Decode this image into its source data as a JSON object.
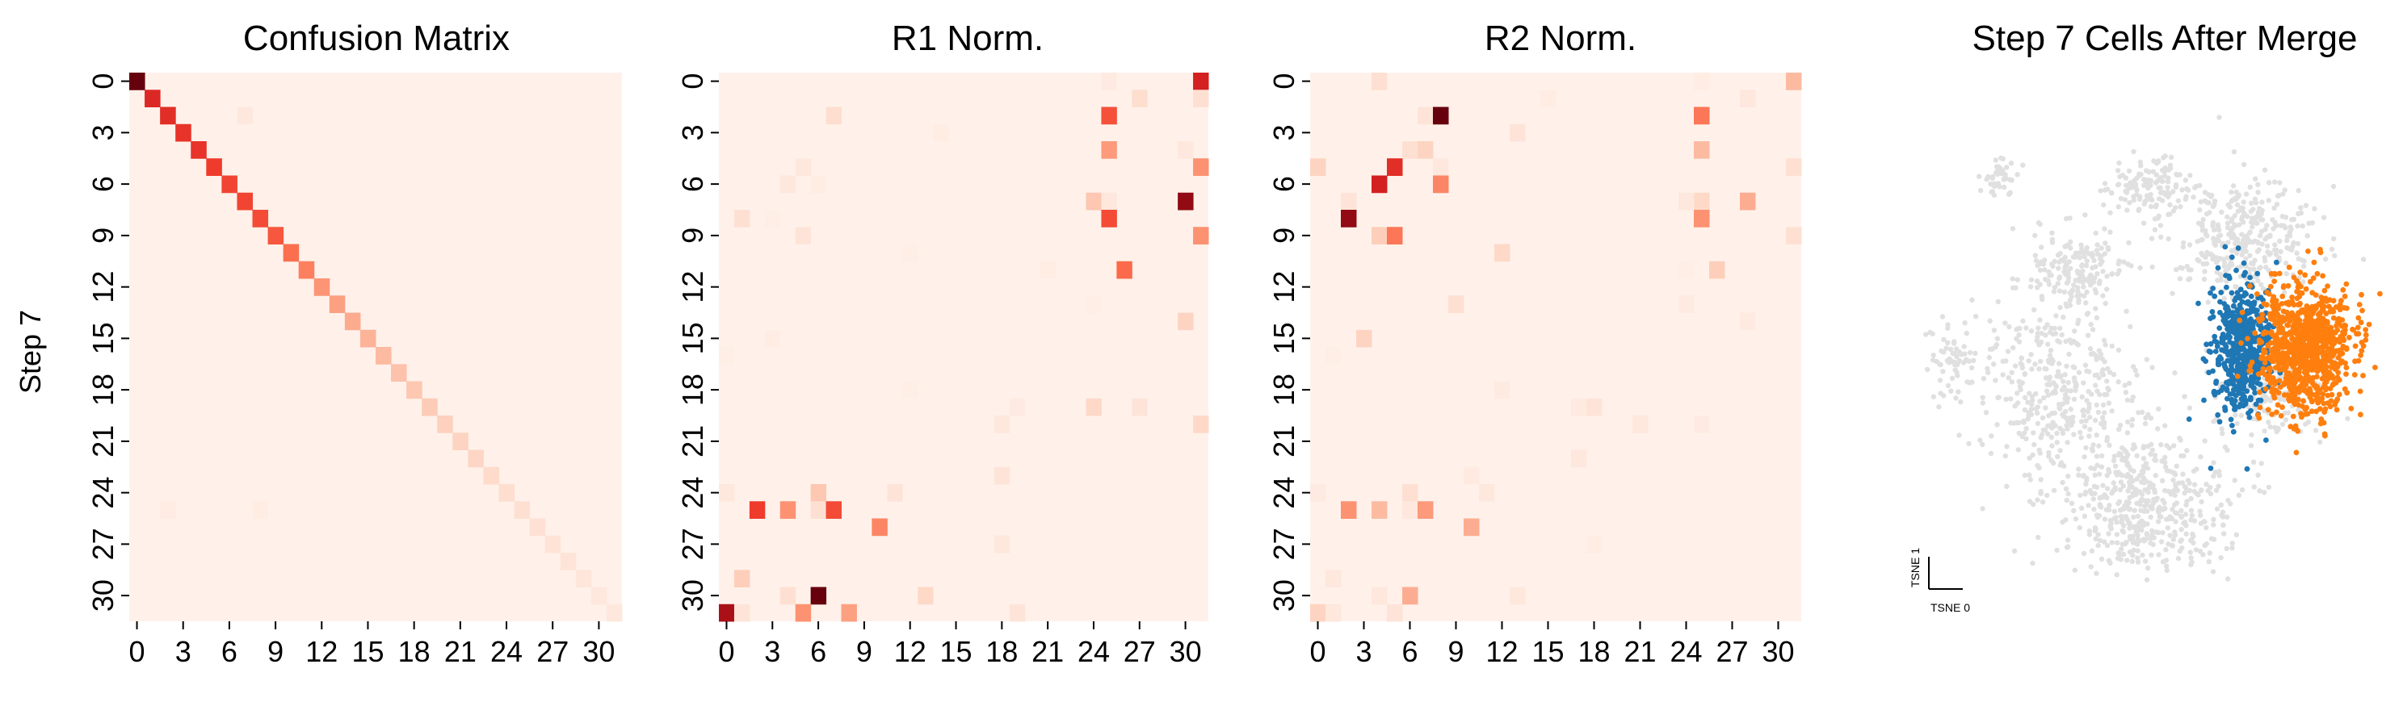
{
  "chart_data": [
    {
      "type": "heatmap",
      "title": "Confusion Matrix",
      "ylabel": "Step 7",
      "xlabel": "",
      "colormap": "Reds",
      "size": 32,
      "tick_labels": [
        "0",
        "3",
        "6",
        "9",
        "12",
        "15",
        "18",
        "21",
        "24",
        "27",
        "30"
      ],
      "tick_values": [
        0,
        3,
        6,
        9,
        12,
        15,
        18,
        21,
        24,
        27,
        30
      ],
      "background_level": 0.03,
      "cells": [
        [
          0,
          0,
          1.0
        ],
        [
          1,
          1,
          0.82
        ],
        [
          2,
          2,
          0.8
        ],
        [
          3,
          3,
          0.78
        ],
        [
          4,
          4,
          0.78
        ],
        [
          5,
          5,
          0.75
        ],
        [
          6,
          6,
          0.72
        ],
        [
          7,
          7,
          0.72
        ],
        [
          8,
          8,
          0.7
        ],
        [
          9,
          9,
          0.66
        ],
        [
          10,
          10,
          0.58
        ],
        [
          11,
          11,
          0.52
        ],
        [
          12,
          12,
          0.44
        ],
        [
          13,
          13,
          0.4
        ],
        [
          14,
          14,
          0.36
        ],
        [
          15,
          15,
          0.33
        ],
        [
          16,
          16,
          0.3
        ],
        [
          17,
          17,
          0.27
        ],
        [
          18,
          18,
          0.25
        ],
        [
          19,
          19,
          0.23
        ],
        [
          20,
          20,
          0.21
        ],
        [
          21,
          21,
          0.2
        ],
        [
          22,
          22,
          0.19
        ],
        [
          23,
          23,
          0.17
        ],
        [
          24,
          24,
          0.16
        ],
        [
          25,
          25,
          0.15
        ],
        [
          26,
          26,
          0.14
        ],
        [
          27,
          27,
          0.13
        ],
        [
          28,
          28,
          0.12
        ],
        [
          29,
          29,
          0.11
        ],
        [
          30,
          30,
          0.1
        ],
        [
          31,
          31,
          0.09
        ],
        [
          2,
          7,
          0.09
        ],
        [
          25,
          2,
          0.07
        ],
        [
          25,
          8,
          0.06
        ]
      ]
    },
    {
      "type": "heatmap",
      "title": "R1 Norm.",
      "ylabel": "",
      "xlabel": "",
      "colormap": "Reds",
      "size": 32,
      "tick_labels": [
        "0",
        "3",
        "6",
        "9",
        "12",
        "15",
        "18",
        "21",
        "24",
        "27",
        "30"
      ],
      "tick_values": [
        0,
        3,
        6,
        9,
        12,
        15,
        18,
        21,
        24,
        27,
        30
      ],
      "background_level": 0.03,
      "cells": [
        [
          0,
          31,
          0.85
        ],
        [
          0,
          25,
          0.08
        ],
        [
          1,
          31,
          0.15
        ],
        [
          1,
          27,
          0.16
        ],
        [
          2,
          7,
          0.16
        ],
        [
          2,
          25,
          0.68
        ],
        [
          3,
          14,
          0.06
        ],
        [
          4,
          25,
          0.42
        ],
        [
          4,
          30,
          0.1
        ],
        [
          5,
          5,
          0.1
        ],
        [
          5,
          31,
          0.45
        ],
        [
          6,
          4,
          0.1
        ],
        [
          6,
          6,
          0.06
        ],
        [
          7,
          24,
          0.25
        ],
        [
          7,
          25,
          0.1
        ],
        [
          7,
          30,
          0.95
        ],
        [
          8,
          1,
          0.15
        ],
        [
          8,
          25,
          0.7
        ],
        [
          8,
          3,
          0.05
        ],
        [
          9,
          5,
          0.12
        ],
        [
          9,
          31,
          0.45
        ],
        [
          10,
          12,
          0.05
        ],
        [
          11,
          21,
          0.06
        ],
        [
          11,
          26,
          0.6
        ],
        [
          13,
          24,
          0.05
        ],
        [
          14,
          30,
          0.2
        ],
        [
          15,
          3,
          0.06
        ],
        [
          16,
          0,
          0.05
        ],
        [
          18,
          12,
          0.05
        ],
        [
          19,
          19,
          0.08
        ],
        [
          19,
          24,
          0.18
        ],
        [
          19,
          27,
          0.12
        ],
        [
          20,
          18,
          0.1
        ],
        [
          20,
          31,
          0.18
        ],
        [
          23,
          18,
          0.12
        ],
        [
          24,
          0,
          0.1
        ],
        [
          24,
          6,
          0.25
        ],
        [
          24,
          11,
          0.12
        ],
        [
          25,
          2,
          0.75
        ],
        [
          25,
          4,
          0.45
        ],
        [
          25,
          6,
          0.15
        ],
        [
          25,
          7,
          0.7
        ],
        [
          26,
          10,
          0.5
        ],
        [
          27,
          18,
          0.1
        ],
        [
          29,
          1,
          0.22
        ],
        [
          30,
          4,
          0.15
        ],
        [
          30,
          6,
          1.0
        ],
        [
          30,
          13,
          0.18
        ],
        [
          31,
          0,
          0.92
        ],
        [
          31,
          1,
          0.12
        ],
        [
          31,
          5,
          0.45
        ],
        [
          31,
          8,
          0.4
        ],
        [
          31,
          19,
          0.12
        ]
      ]
    },
    {
      "type": "heatmap",
      "title": "R2 Norm.",
      "ylabel": "",
      "xlabel": "",
      "colormap": "Reds",
      "size": 32,
      "tick_labels": [
        "0",
        "3",
        "6",
        "9",
        "12",
        "15",
        "18",
        "21",
        "24",
        "27",
        "30"
      ],
      "tick_values": [
        0,
        3,
        6,
        9,
        12,
        15,
        18,
        21,
        24,
        27,
        30
      ],
      "background_level": 0.03,
      "cells": [
        [
          0,
          4,
          0.15
        ],
        [
          0,
          31,
          0.3
        ],
        [
          0,
          25,
          0.06
        ],
        [
          1,
          15,
          0.06
        ],
        [
          1,
          28,
          0.1
        ],
        [
          2,
          7,
          0.12
        ],
        [
          2,
          8,
          1.0
        ],
        [
          2,
          25,
          0.55
        ],
        [
          3,
          13,
          0.12
        ],
        [
          4,
          6,
          0.15
        ],
        [
          4,
          7,
          0.2
        ],
        [
          4,
          25,
          0.3
        ],
        [
          5,
          0,
          0.2
        ],
        [
          5,
          5,
          0.8
        ],
        [
          5,
          8,
          0.1
        ],
        [
          5,
          31,
          0.15
        ],
        [
          6,
          4,
          0.85
        ],
        [
          6,
          8,
          0.5
        ],
        [
          7,
          2,
          0.12
        ],
        [
          7,
          25,
          0.18
        ],
        [
          7,
          24,
          0.1
        ],
        [
          7,
          28,
          0.35
        ],
        [
          8,
          2,
          0.95
        ],
        [
          8,
          25,
          0.45
        ],
        [
          9,
          4,
          0.22
        ],
        [
          9,
          5,
          0.55
        ],
        [
          9,
          31,
          0.15
        ],
        [
          10,
          12,
          0.18
        ],
        [
          11,
          24,
          0.05
        ],
        [
          11,
          26,
          0.22
        ],
        [
          13,
          9,
          0.15
        ],
        [
          13,
          24,
          0.08
        ],
        [
          14,
          28,
          0.08
        ],
        [
          15,
          3,
          0.2
        ],
        [
          16,
          1,
          0.05
        ],
        [
          18,
          12,
          0.08
        ],
        [
          19,
          17,
          0.08
        ],
        [
          19,
          18,
          0.12
        ],
        [
          20,
          25,
          0.08
        ],
        [
          20,
          21,
          0.1
        ],
        [
          22,
          17,
          0.1
        ],
        [
          23,
          10,
          0.08
        ],
        [
          24,
          0,
          0.08
        ],
        [
          24,
          6,
          0.15
        ],
        [
          24,
          11,
          0.1
        ],
        [
          25,
          2,
          0.45
        ],
        [
          25,
          4,
          0.3
        ],
        [
          25,
          6,
          0.1
        ],
        [
          25,
          7,
          0.42
        ],
        [
          26,
          10,
          0.35
        ],
        [
          27,
          18,
          0.06
        ],
        [
          29,
          1,
          0.1
        ],
        [
          30,
          4,
          0.1
        ],
        [
          30,
          6,
          0.35
        ],
        [
          30,
          13,
          0.1
        ],
        [
          31,
          0,
          0.2
        ],
        [
          31,
          1,
          0.1
        ],
        [
          31,
          5,
          0.12
        ]
      ]
    },
    {
      "type": "scatter",
      "title": "Step 7 Cells After Merge",
      "xlabel": "TSNE 0",
      "ylabel": "TSNE 1",
      "colors": {
        "background": "#e0e0e0",
        "series_a": "#1f77b4",
        "series_b": "#ff7f0e"
      },
      "regions": [
        {
          "group": "background",
          "cx": 0.35,
          "cy": 0.6,
          "rx": 0.22,
          "ry": 0.22,
          "n": 380
        },
        {
          "group": "background",
          "cx": 0.78,
          "cy": 0.28,
          "rx": 0.2,
          "ry": 0.14,
          "n": 360
        },
        {
          "group": "background",
          "cx": 0.55,
          "cy": 0.17,
          "rx": 0.1,
          "ry": 0.07,
          "n": 120
        },
        {
          "group": "background",
          "cx": 0.22,
          "cy": 0.15,
          "rx": 0.05,
          "ry": 0.05,
          "n": 40
        },
        {
          "group": "background",
          "cx": 0.85,
          "cy": 0.6,
          "rx": 0.15,
          "ry": 0.13,
          "n": 160
        },
        {
          "group": "background",
          "cx": 0.55,
          "cy": 0.85,
          "rx": 0.22,
          "ry": 0.18,
          "n": 520
        },
        {
          "group": "background",
          "cx": 0.1,
          "cy": 0.55,
          "rx": 0.06,
          "ry": 0.1,
          "n": 60
        },
        {
          "group": "background",
          "cx": 0.4,
          "cy": 0.35,
          "rx": 0.12,
          "ry": 0.1,
          "n": 160
        },
        {
          "group": "series_a",
          "cx": 0.78,
          "cy": 0.52,
          "rx": 0.08,
          "ry": 0.16,
          "n": 520
        },
        {
          "group": "series_b",
          "cx": 0.93,
          "cy": 0.52,
          "rx": 0.12,
          "ry": 0.15,
          "n": 900
        }
      ]
    }
  ]
}
